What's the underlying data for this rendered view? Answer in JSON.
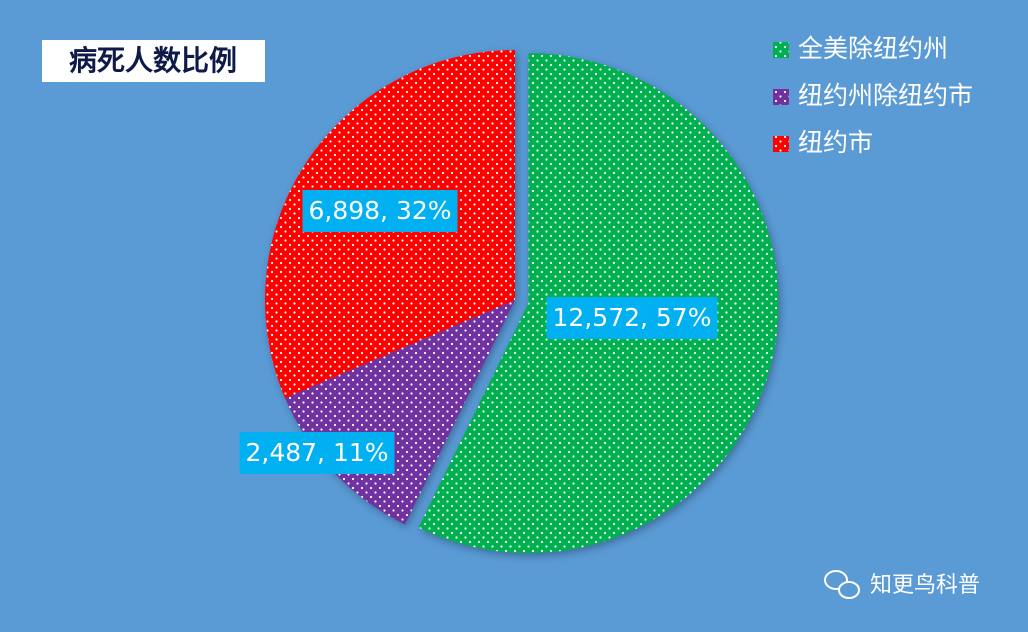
{
  "chart_data": {
    "type": "pie",
    "title": "病死人数比例",
    "categories": [
      "全美除纽约州",
      "纽约州除纽约市",
      "纽约市"
    ],
    "values": [
      12572,
      2487,
      6898
    ],
    "value_labels": [
      "12,572, 57%",
      "2,487, 11%",
      "6,898, 32%"
    ],
    "colors": [
      "#00b050",
      "#7030a0",
      "#ff0000"
    ],
    "legend": "top-right",
    "watermark": "知更鸟科普"
  }
}
